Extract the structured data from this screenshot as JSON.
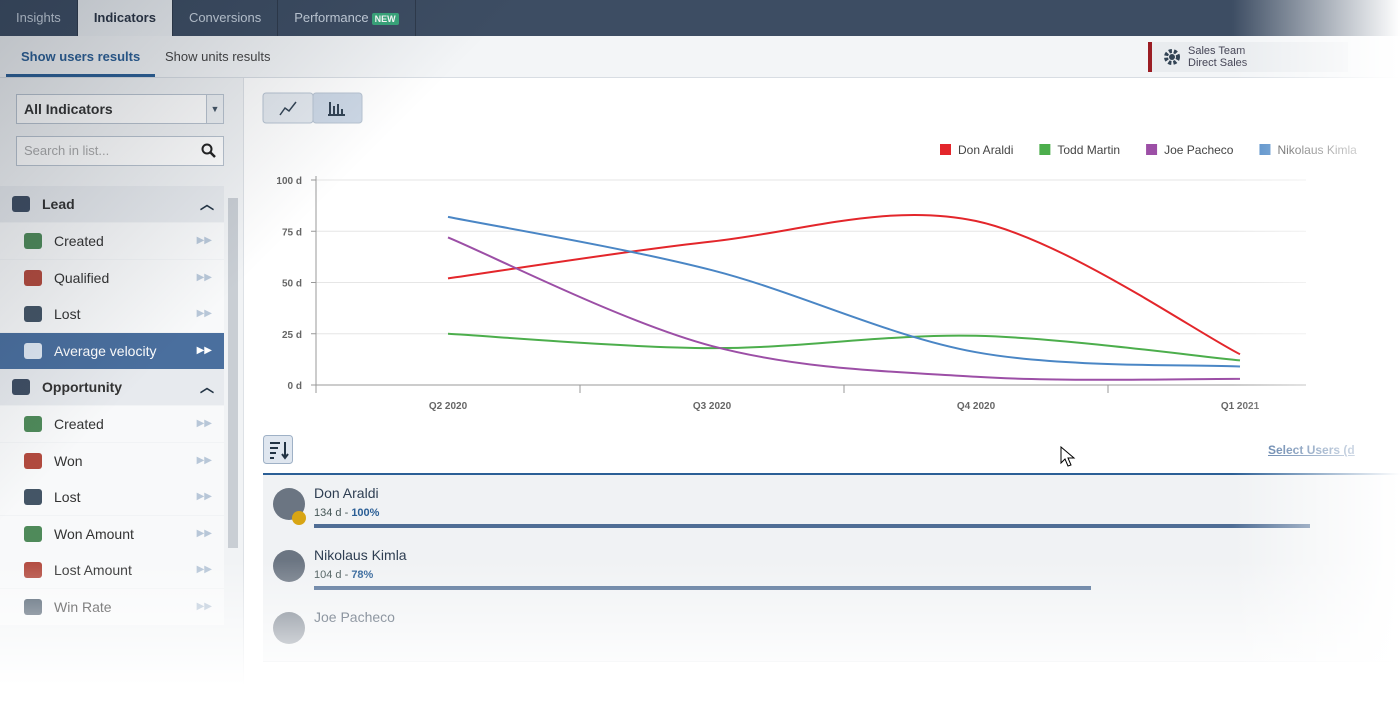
{
  "tabs": [
    "Insights",
    "Indicators",
    "Conversions",
    "Performance"
  ],
  "tab_badge": "NEW",
  "subtabs": [
    "Show users results",
    "Show units results"
  ],
  "team": [
    "Sales Team",
    "Direct Sales"
  ],
  "sidebar": {
    "dropdown": "All Indicators",
    "search_placeholder": "Search in list...",
    "groups": [
      {
        "title": "Lead",
        "items": [
          "Created",
          "Qualified",
          "Lost",
          "Average velocity"
        ]
      },
      {
        "title": "Opportunity",
        "items": [
          "Created",
          "Won",
          "Lost",
          "Won Amount",
          "Lost Amount",
          "Win Rate"
        ]
      }
    ]
  },
  "chart_data": {
    "type": "line",
    "categories": [
      "Q2 2020",
      "Q3 2020",
      "Q4 2020",
      "Q1 2021"
    ],
    "ylim": [
      0,
      100
    ],
    "yticks": [
      {
        "value": 0,
        "label": "0 d"
      },
      {
        "value": 25,
        "label": "25 d"
      },
      {
        "value": 50,
        "label": "50 d"
      },
      {
        "value": 75,
        "label": "75 d"
      },
      {
        "value": 100,
        "label": "100 d"
      }
    ],
    "grid": true,
    "legend": "top-right",
    "series": [
      {
        "name": "Don Araldi",
        "color": "#e3262b",
        "values": [
          52,
          70,
          80,
          15
        ]
      },
      {
        "name": "Todd Martin",
        "color": "#4cae4c",
        "values": [
          25,
          18,
          24,
          12
        ]
      },
      {
        "name": "Joe Pacheco",
        "color": "#9c4fa6",
        "values": [
          72,
          19,
          4,
          3
        ]
      },
      {
        "name": "Nikolaus Kimla",
        "color": "#4a86c5",
        "values": [
          82,
          56,
          16,
          9
        ]
      }
    ]
  },
  "select_users": "Select Users (d",
  "users": [
    {
      "name": "Don Araldi",
      "stat": "134 d",
      "percent": "100%"
    },
    {
      "name": "Nikolaus Kimla",
      "stat": "104 d",
      "percent": "78%"
    },
    {
      "name": "Joe Pacheco",
      "stat": "",
      "percent": ""
    }
  ]
}
